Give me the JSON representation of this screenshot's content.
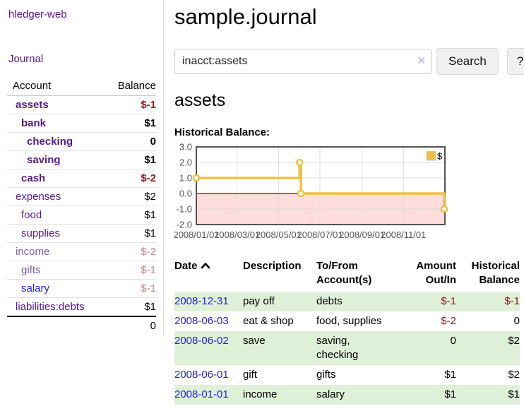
{
  "colors": {
    "purple": "#551a8b",
    "dimpurple": "#7d5ca6",
    "blue": "#2323dc",
    "neg": "#8b1a1a",
    "dimneg": "#c08888",
    "black": "#000000",
    "stripe_green": "#dff0d8",
    "series_gold": "#edc240",
    "negative_region_pink": "#ffdddd",
    "zero_line_darkred": "#8b0000"
  },
  "app": {
    "brand": "hledger-web",
    "nav_journal": "Journal"
  },
  "sidebar": {
    "headers": {
      "account": "Account",
      "balance": "Balance"
    },
    "rows": [
      {
        "name": "assets",
        "indent": 1,
        "bold": true,
        "name_color": "purple",
        "balance": "$-1",
        "balance_color": "neg"
      },
      {
        "name": "bank",
        "indent": 2,
        "bold": true,
        "name_color": "purple",
        "balance": "$1",
        "balance_color": "black"
      },
      {
        "name": "checking",
        "indent": 3,
        "bold": true,
        "name_color": "purple",
        "balance": "0",
        "balance_color": "black"
      },
      {
        "name": "saving",
        "indent": 3,
        "bold": true,
        "name_color": "purple",
        "balance": "$1",
        "balance_color": "black"
      },
      {
        "name": "cash",
        "indent": 2,
        "bold": true,
        "name_color": "purple",
        "balance": "$-2",
        "balance_color": "neg"
      },
      {
        "name": "expenses",
        "indent": 1,
        "bold": false,
        "name_color": "purple",
        "balance": "$2",
        "balance_color": "black"
      },
      {
        "name": "food",
        "indent": 2,
        "bold": false,
        "name_color": "purple",
        "balance": "$1",
        "balance_color": "black"
      },
      {
        "name": "supplies",
        "indent": 2,
        "bold": false,
        "name_color": "purple",
        "balance": "$1",
        "balance_color": "black"
      },
      {
        "name": "income",
        "indent": 1,
        "bold": false,
        "name_color": "dimpurple",
        "balance": "$-2",
        "balance_color": "dimneg"
      },
      {
        "name": "gifts",
        "indent": 2,
        "bold": false,
        "name_color": "dimpurple",
        "balance": "$-1",
        "balance_color": "dimneg"
      },
      {
        "name": "salary",
        "indent": 2,
        "bold": false,
        "name_color": "blue",
        "balance": "$-1",
        "balance_color": "dimneg"
      },
      {
        "name": "liabilities:debts",
        "indent": 1,
        "bold": false,
        "name_color": "purple",
        "balance": "$1",
        "balance_color": "black"
      }
    ],
    "total": "0"
  },
  "header": {
    "title": "sample.journal"
  },
  "search": {
    "query": "inacct:assets",
    "clear_icon": "✕",
    "button_label": "Search",
    "help_label": "?"
  },
  "account_page": {
    "title": "assets",
    "chart_label": "Historical Balance:"
  },
  "chart_data": {
    "type": "line",
    "step": true,
    "title": "Historical Balance:",
    "series": [
      {
        "name": "$",
        "color": "#edc240",
        "points": [
          [
            "2008-01-01",
            1
          ],
          [
            "2008-06-01",
            2
          ],
          [
            "2008-06-03",
            0
          ],
          [
            "2008-12-31",
            -1
          ]
        ]
      }
    ],
    "x_start": "2008-01-01",
    "x_end": "2009-01-01",
    "x_ticks": [
      "2008/01/01",
      "2008/03/01",
      "2008/05/01",
      "2008/07/01",
      "2008/09/01",
      "2008/11/01"
    ],
    "y_ticks": [
      3.0,
      2.0,
      1.0,
      0.0,
      -1.0,
      -2.0
    ],
    "ylim": [
      -2,
      3
    ],
    "grid": true,
    "legend": {
      "label": "$",
      "position": "top-right"
    },
    "negative_region_color": "#ffdddd",
    "zero_line_color": "#8b0000",
    "border_color": "#545454",
    "tick_label_color": "#545454"
  },
  "register": {
    "headers": [
      {
        "label": "Date",
        "align": "left"
      },
      {
        "label": "Description",
        "align": "left"
      },
      {
        "label": "To/From Account(s)",
        "align": "left"
      },
      {
        "label": "Amount Out/In",
        "align": "right"
      },
      {
        "label": "Historical Balance",
        "align": "right"
      }
    ],
    "sort": {
      "column": "Date",
      "direction": "asc"
    },
    "rows": [
      {
        "date": "2008-12-31",
        "description": "pay off",
        "accounts": "debts",
        "amount": "$-1",
        "amount_color": "neg",
        "balance": "$-1",
        "balance_color": "neg"
      },
      {
        "date": "2008-06-03",
        "description": "eat & shop",
        "accounts": "food, supplies",
        "amount": "$-2",
        "amount_color": "neg",
        "balance": "0",
        "balance_color": "black"
      },
      {
        "date": "2008-06-02",
        "description": "save",
        "accounts": "saving, checking",
        "amount": "0",
        "amount_color": "black",
        "balance": "$2",
        "balance_color": "black"
      },
      {
        "date": "2008-06-01",
        "description": "gift",
        "accounts": "gifts",
        "amount": "$1",
        "amount_color": "black",
        "balance": "$2",
        "balance_color": "black"
      },
      {
        "date": "2008-01-01",
        "description": "income",
        "accounts": "salary",
        "amount": "$1",
        "amount_color": "black",
        "balance": "$1",
        "balance_color": "black"
      }
    ]
  }
}
